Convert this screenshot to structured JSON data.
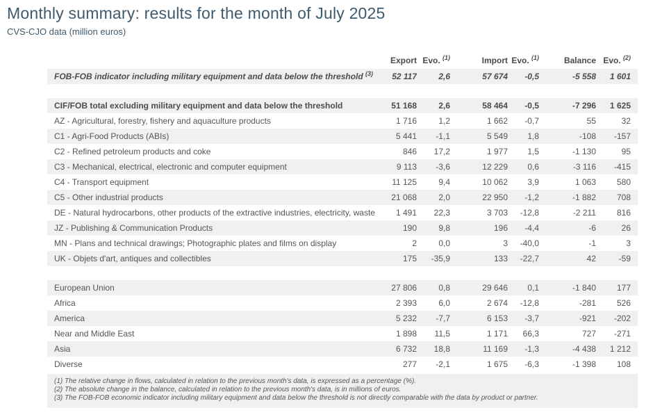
{
  "page": {
    "title": "Monthly summary: results for the month of July 2025",
    "subtitle": "CVS-CJO data (million euros)"
  },
  "colors": {
    "title_text": "#3e5a6c",
    "body_text": "#555555",
    "row_shade": "#f0f0f0"
  },
  "table": {
    "columns": [
      {
        "label": "",
        "sup": ""
      },
      {
        "label": "Export",
        "sup": ""
      },
      {
        "label": "Evo.",
        "sup": "(1)"
      },
      {
        "label": "Import",
        "sup": ""
      },
      {
        "label": "Evo.",
        "sup": "(1)"
      },
      {
        "label": "Balance",
        "sup": ""
      },
      {
        "label": "Evo.",
        "sup": "(2)"
      }
    ],
    "sections": [
      {
        "rows": [
          {
            "label": "FOB-FOB indicator including military equipment and data below the threshold",
            "sup": "(3)",
            "style": "bolditalic",
            "values": [
              "52 117",
              "2,6",
              "57 674",
              "-0,5",
              "-5 558",
              "1 601"
            ]
          }
        ]
      },
      {
        "rows": [
          {
            "label": "CIF/FOB total excluding military equipment and data below the threshold",
            "sup": "",
            "style": "bold",
            "values": [
              "51 168",
              "2,6",
              "58 464",
              "-0,5",
              "-7 296",
              "1 625"
            ]
          },
          {
            "label": "AZ - Agricultural, forestry, fishery and aquaculture products",
            "sup": "",
            "style": "",
            "values": [
              "1 716",
              "1,2",
              "1 662",
              "-0,7",
              "55",
              "32"
            ]
          },
          {
            "label": "C1 - Agri-Food Products (ABIs)",
            "sup": "",
            "style": "",
            "values": [
              "5 441",
              "-1,1",
              "5 549",
              "1,8",
              "-108",
              "-157"
            ]
          },
          {
            "label": "C2 - Refined petroleum products and coke",
            "sup": "",
            "style": "",
            "values": [
              "846",
              "17,2",
              "1 977",
              "1,5",
              "-1 130",
              "95"
            ]
          },
          {
            "label": "C3 - Mechanical, electrical, electronic and computer equipment",
            "sup": "",
            "style": "",
            "values": [
              "9 113",
              "-3,6",
              "12 229",
              "0,6",
              "-3 116",
              "-415"
            ]
          },
          {
            "label": "C4 - Transport equipment",
            "sup": "",
            "style": "",
            "values": [
              "11 125",
              "9,4",
              "10 062",
              "3,9",
              "1 063",
              "580"
            ]
          },
          {
            "label": "C5 - Other industrial products",
            "sup": "",
            "style": "",
            "values": [
              "21 068",
              "2,0",
              "22 950",
              "-1,2",
              "-1 882",
              "708"
            ]
          },
          {
            "label": "DE - Natural hydrocarbons, other products of the extractive industries, electricity, waste",
            "sup": "",
            "style": "",
            "values": [
              "1 491",
              "22,3",
              "3 703",
              "-12,8",
              "-2 211",
              "816"
            ]
          },
          {
            "label": "JZ - Publishing & Communication Products",
            "sup": "",
            "style": "",
            "values": [
              "190",
              "9,8",
              "196",
              "-4,4",
              "-6",
              "26"
            ]
          },
          {
            "label": "MN - Plans and technical drawings; Photographic plates and films on display",
            "sup": "",
            "style": "",
            "values": [
              "2",
              "0,0",
              "3",
              "-40,0",
              "-1",
              "3"
            ]
          },
          {
            "label": "UK - Objets d'art, antiques and collectibles",
            "sup": "",
            "style": "",
            "values": [
              "175",
              "-35,9",
              "133",
              "-22,7",
              "42",
              "-59"
            ]
          }
        ]
      },
      {
        "rows": [
          {
            "label": "European Union",
            "sup": "",
            "style": "",
            "values": [
              "27 806",
              "0,8",
              "29 646",
              "0,1",
              "-1 840",
              "177"
            ]
          },
          {
            "label": "Africa",
            "sup": "",
            "style": "",
            "values": [
              "2 393",
              "6,0",
              "2 674",
              "-12,8",
              "-281",
              "526"
            ]
          },
          {
            "label": "America",
            "sup": "",
            "style": "",
            "values": [
              "5 232",
              "-7,7",
              "6 153",
              "-3,7",
              "-921",
              "-202"
            ]
          },
          {
            "label": "Near and Middle East",
            "sup": "",
            "style": "",
            "values": [
              "1 898",
              "11,5",
              "1 171",
              "66,3",
              "727",
              "-271"
            ]
          },
          {
            "label": "Asia",
            "sup": "",
            "style": "",
            "values": [
              "6 732",
              "18,8",
              "11 169",
              "-1,3",
              "-4 438",
              "1 212"
            ]
          },
          {
            "label": "Diverse",
            "sup": "",
            "style": "",
            "values": [
              "277",
              "-2,1",
              "1 675",
              "-6,3",
              "-1 398",
              "108"
            ]
          }
        ]
      }
    ]
  },
  "footnotes": [
    "(1) The relative change in flows, calculated in relation to the previous month's data, is expressed as a percentage (%).",
    "(2) The absolute change in the balance, calculated in relation to the previous month's data, is in millions of euros.",
    "(3) The FOB-FOB economic indicator including military equipment and data below the threshold is not directly comparable with the data by product or partner."
  ]
}
